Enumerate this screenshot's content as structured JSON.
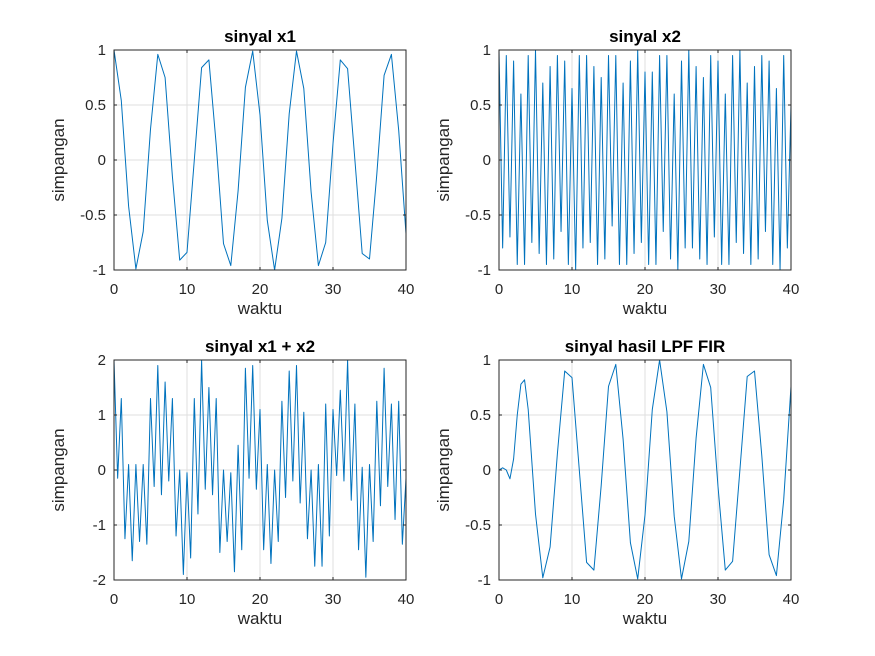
{
  "chart_data": [
    {
      "type": "line",
      "title": "sinyal x1",
      "xlabel": "waktu",
      "ylabel": "simpangan",
      "xlim": [
        0,
        40
      ],
      "ylim": [
        -1,
        1
      ],
      "xticks": [
        0,
        10,
        20,
        30,
        40
      ],
      "yticks": [
        -1,
        -0.5,
        0,
        0.5,
        1
      ],
      "xticklabels": [
        "0",
        "10",
        "20",
        "30",
        "40"
      ],
      "yticklabels": [
        "-1",
        "-0.5",
        "0",
        "0.5",
        "1"
      ],
      "grid": true,
      "series_color": "#0072bd",
      "series": [
        {
          "x": [
            0,
            1,
            2,
            3,
            4,
            5,
            6,
            7,
            8,
            9,
            10,
            11,
            12,
            13,
            14,
            15,
            16,
            17,
            18,
            19,
            20,
            21,
            22,
            23,
            24,
            25,
            26,
            27,
            28,
            29,
            30,
            31,
            32,
            33,
            34,
            35,
            36,
            37,
            38,
            39,
            40
          ],
          "y": [
            1,
            0.54,
            -0.42,
            -0.99,
            -0.65,
            0.28,
            0.96,
            0.75,
            -0.15,
            -0.91,
            -0.84,
            0.0,
            0.84,
            0.91,
            0.14,
            -0.76,
            -0.96,
            -0.28,
            0.66,
            0.99,
            0.41,
            -0.55,
            -1.0,
            -0.53,
            0.42,
            0.99,
            0.65,
            -0.29,
            -0.96,
            -0.75,
            0.15,
            0.91,
            0.83,
            0.0,
            -0.85,
            -0.9,
            -0.13,
            0.77,
            0.96,
            0.27,
            -0.67
          ]
        }
      ]
    },
    {
      "type": "line",
      "title": "sinyal x2",
      "xlabel": "waktu",
      "ylabel": "simpangan",
      "xlim": [
        0,
        40
      ],
      "ylim": [
        -1,
        1
      ],
      "xticks": [
        0,
        10,
        20,
        30,
        40
      ],
      "yticks": [
        -1,
        -0.5,
        0,
        0.5,
        1
      ],
      "xticklabels": [
        "0",
        "10",
        "20",
        "30",
        "40"
      ],
      "yticklabels": [
        "-1",
        "-0.5",
        "0",
        "0.5",
        "1"
      ],
      "grid": true,
      "series_color": "#0072bd",
      "series": [
        {
          "x": [
            0,
            0.5,
            1,
            1.5,
            2,
            2.5,
            3,
            3.5,
            4,
            4.5,
            5,
            5.5,
            6,
            6.5,
            7,
            7.5,
            8,
            8.5,
            9,
            9.5,
            10,
            10.5,
            11,
            11.5,
            12,
            12.5,
            13,
            13.5,
            14,
            14.5,
            15,
            15.5,
            16,
            16.5,
            17,
            17.5,
            18,
            18.5,
            19,
            19.5,
            20,
            20.5,
            21,
            21.5,
            22,
            22.5,
            23,
            23.5,
            24,
            24.5,
            25,
            25.5,
            26,
            26.5,
            27,
            27.5,
            28,
            28.5,
            29,
            29.5,
            30,
            30.5,
            31,
            31.5,
            32,
            32.5,
            33,
            33.5,
            34,
            34.5,
            35,
            35.5,
            36,
            36.5,
            37,
            37.5,
            38,
            38.5,
            39,
            39.5,
            40
          ],
          "y": [
            1,
            -0.8,
            0.95,
            -0.7,
            0.9,
            -0.95,
            0.6,
            -0.95,
            0.95,
            -0.75,
            1.0,
            -0.85,
            0.7,
            -0.95,
            0.85,
            -0.9,
            0.95,
            -0.65,
            0.9,
            -0.95,
            0.65,
            -1.0,
            0.95,
            -0.8,
            0.95,
            -0.75,
            0.85,
            -0.95,
            0.75,
            -0.9,
            0.95,
            -0.6,
            0.95,
            -0.95,
            0.7,
            -0.95,
            0.9,
            -0.85,
            1.0,
            -0.75,
            0.8,
            -0.95,
            0.8,
            -0.95,
            0.95,
            -0.65,
            0.95,
            -0.9,
            0.6,
            -1.0,
            0.9,
            -0.8,
            1.0,
            -0.8,
            0.85,
            -0.9,
            0.75,
            -0.95,
            0.95,
            -0.7,
            0.9,
            -0.95,
            0.6,
            -0.95,
            0.95,
            -0.75,
            1.0,
            -0.85,
            0.7,
            -0.95,
            0.85,
            -0.9,
            0.95,
            -0.65,
            0.9,
            -0.95,
            0.65,
            -1.0,
            0.95,
            -0.8,
            0.5
          ]
        }
      ]
    },
    {
      "type": "line",
      "title": "sinyal x1 + x2",
      "xlabel": "waktu",
      "ylabel": "simpangan",
      "xlim": [
        0,
        40
      ],
      "ylim": [
        -2,
        2
      ],
      "xticks": [
        0,
        10,
        20,
        30,
        40
      ],
      "yticks": [
        -2,
        -1,
        0,
        1,
        2
      ],
      "xticklabels": [
        "0",
        "10",
        "20",
        "30",
        "40"
      ],
      "yticklabels": [
        "-2",
        "-1",
        "0",
        "1",
        "2"
      ],
      "grid": true,
      "series_color": "#0072bd",
      "series": [
        {
          "x": [
            0,
            0.5,
            1,
            1.5,
            2,
            2.5,
            3,
            3.5,
            4,
            4.5,
            5,
            5.5,
            6,
            6.5,
            7,
            7.5,
            8,
            8.5,
            9,
            9.5,
            10,
            10.5,
            11,
            11.5,
            12,
            12.5,
            13,
            13.5,
            14,
            14.5,
            15,
            15.5,
            16,
            16.5,
            17,
            17.5,
            18,
            18.5,
            19,
            19.5,
            20,
            20.5,
            21,
            21.5,
            22,
            22.5,
            23,
            23.5,
            24,
            24.5,
            25,
            25.5,
            26,
            26.5,
            27,
            27.5,
            28,
            28.5,
            29,
            29.5,
            30,
            30.5,
            31,
            31.5,
            32,
            32.5,
            33,
            33.5,
            34,
            34.5,
            35,
            35.5,
            36,
            36.5,
            37,
            37.5,
            38,
            38.5,
            39,
            39.5,
            40
          ],
          "y": [
            2.0,
            -0.15,
            1.3,
            -1.25,
            0.1,
            -1.65,
            0.1,
            -1.3,
            0.1,
            -1.35,
            1.3,
            -0.3,
            1.9,
            -0.45,
            1.6,
            -0.2,
            1.3,
            -1.2,
            0.0,
            -1.9,
            -0.05,
            -1.6,
            1.3,
            -0.8,
            2.0,
            -0.35,
            1.5,
            -0.45,
            1.3,
            -1.5,
            0.0,
            -1.3,
            -0.05,
            -1.85,
            0.45,
            -1.45,
            1.85,
            -0.15,
            1.9,
            -0.35,
            1.1,
            -1.45,
            0.1,
            -1.7,
            0.0,
            -1.3,
            1.25,
            -0.5,
            1.8,
            -0.2,
            1.9,
            -0.6,
            1.05,
            -1.25,
            0.0,
            -1.75,
            0.1,
            -1.75,
            1.2,
            -1.2,
            1.1,
            -0.1,
            1.45,
            -0.2,
            2.0,
            -0.55,
            1.2,
            -1.45,
            0.05,
            -1.95,
            0.1,
            -1.3,
            1.25,
            -0.65,
            1.85,
            -0.3,
            1.2,
            -0.9,
            1.25,
            -1.35,
            -0.15
          ]
        }
      ]
    },
    {
      "type": "line",
      "title": "sinyal hasil LPF FIR",
      "xlabel": "waktu",
      "ylabel": "simpangan",
      "xlim": [
        0,
        40
      ],
      "ylim": [
        -1,
        1
      ],
      "xticks": [
        0,
        10,
        20,
        30,
        40
      ],
      "yticks": [
        -1,
        -0.5,
        0,
        0.5,
        1
      ],
      "xticklabels": [
        "0",
        "10",
        "20",
        "30",
        "40"
      ],
      "yticklabels": [
        "-1",
        "-0.5",
        "0",
        "0.5",
        "1"
      ],
      "grid": true,
      "series_color": "#0072bd",
      "series": [
        {
          "x": [
            0,
            0.5,
            1,
            1.5,
            2,
            2.5,
            3,
            3.5,
            4,
            5,
            6,
            7,
            8,
            9,
            10,
            11,
            12,
            13,
            14,
            15,
            16,
            17,
            18,
            19,
            20,
            21,
            22,
            23,
            24,
            25,
            26,
            27,
            28,
            29,
            30,
            31,
            32,
            33,
            34,
            35,
            36,
            37,
            38,
            39,
            40
          ],
          "y": [
            0,
            0.02,
            0.0,
            -0.08,
            0.1,
            0.5,
            0.78,
            0.82,
            0.55,
            -0.4,
            -0.98,
            -0.7,
            0.15,
            0.9,
            0.84,
            0.0,
            -0.84,
            -0.91,
            -0.14,
            0.76,
            0.96,
            0.28,
            -0.66,
            -0.99,
            -0.41,
            0.55,
            1.0,
            0.53,
            -0.42,
            -0.99,
            -0.65,
            0.29,
            0.96,
            0.75,
            -0.15,
            -0.91,
            -0.83,
            0.0,
            0.85,
            0.9,
            0.13,
            -0.77,
            -0.96,
            -0.27,
            0.76
          ]
        }
      ]
    }
  ]
}
